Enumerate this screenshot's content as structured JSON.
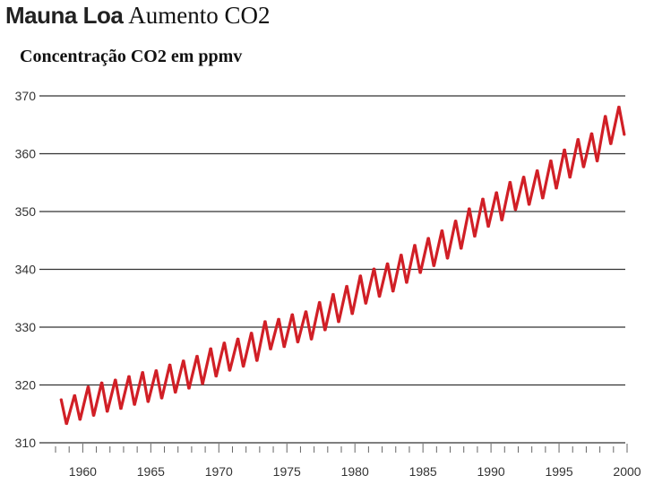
{
  "title": {
    "main": "Mauna Loa",
    "sub": "Aumento CO2"
  },
  "subtitle": "Concentração CO2 em ppmv",
  "colors": {
    "series": "#d11f26",
    "grid": "#333333"
  },
  "chart_data": {
    "type": "line",
    "title": "Mauna Loa Aumento CO2",
    "subtitle": "Concentração CO2 em ppmv",
    "xlabel": "",
    "ylabel": "",
    "xlim": [
      1958,
      2000
    ],
    "ylim": [
      310,
      373
    ],
    "grid": "horizontal",
    "yticks": [
      310,
      320,
      330,
      340,
      350,
      360,
      370
    ],
    "xticks": [
      1960,
      1965,
      1970,
      1975,
      1980,
      1985,
      1990,
      1995,
      2000
    ],
    "series": [
      {
        "peaks": [
          [
            1958.4,
            317.6
          ],
          [
            1959.4,
            318.3
          ],
          [
            1960.4,
            319.8
          ],
          [
            1961.4,
            320.5
          ],
          [
            1962.4,
            321.0
          ],
          [
            1963.4,
            321.6
          ],
          [
            1964.4,
            322.3
          ],
          [
            1965.4,
            322.6
          ],
          [
            1966.4,
            323.6
          ],
          [
            1967.4,
            324.3
          ],
          [
            1968.4,
            325.1
          ],
          [
            1969.4,
            326.4
          ],
          [
            1970.4,
            327.4
          ],
          [
            1971.4,
            328.1
          ],
          [
            1972.4,
            329.1
          ],
          [
            1973.4,
            331.1
          ],
          [
            1974.4,
            331.5
          ],
          [
            1975.4,
            332.3
          ],
          [
            1976.4,
            332.8
          ],
          [
            1977.4,
            334.4
          ],
          [
            1978.4,
            335.8
          ],
          [
            1979.4,
            337.2
          ],
          [
            1980.4,
            339.0
          ],
          [
            1981.4,
            340.2
          ],
          [
            1982.4,
            341.1
          ],
          [
            1983.4,
            342.6
          ],
          [
            1984.4,
            344.3
          ],
          [
            1985.4,
            345.5
          ],
          [
            1986.4,
            346.8
          ],
          [
            1987.4,
            348.5
          ],
          [
            1988.4,
            350.6
          ],
          [
            1989.4,
            352.3
          ],
          [
            1990.4,
            353.4
          ],
          [
            1991.4,
            355.2
          ],
          [
            1992.4,
            356.1
          ],
          [
            1993.4,
            357.2
          ],
          [
            1994.4,
            358.9
          ],
          [
            1995.4,
            360.8
          ],
          [
            1996.4,
            362.6
          ],
          [
            1997.4,
            363.6
          ],
          [
            1998.4,
            366.6
          ],
          [
            1999.4,
            368.2
          ]
        ],
        "troughs": [
          [
            1958.8,
            313.2
          ],
          [
            1959.8,
            313.9
          ],
          [
            1960.8,
            314.6
          ],
          [
            1961.8,
            315.3
          ],
          [
            1962.8,
            315.8
          ],
          [
            1963.8,
            316.5
          ],
          [
            1964.8,
            317.0
          ],
          [
            1965.8,
            317.6
          ],
          [
            1966.8,
            318.6
          ],
          [
            1967.8,
            319.3
          ],
          [
            1968.8,
            320.1
          ],
          [
            1969.8,
            321.4
          ],
          [
            1970.8,
            322.4
          ],
          [
            1971.8,
            323.1
          ],
          [
            1972.8,
            324.1
          ],
          [
            1973.8,
            326.1
          ],
          [
            1974.8,
            326.5
          ],
          [
            1975.8,
            327.3
          ],
          [
            1976.8,
            327.8
          ],
          [
            1977.8,
            329.4
          ],
          [
            1978.8,
            330.8
          ],
          [
            1979.8,
            332.2
          ],
          [
            1980.8,
            334.0
          ],
          [
            1981.8,
            335.2
          ],
          [
            1982.8,
            336.1
          ],
          [
            1983.8,
            337.6
          ],
          [
            1984.8,
            339.3
          ],
          [
            1985.8,
            340.5
          ],
          [
            1986.8,
            341.8
          ],
          [
            1987.8,
            343.5
          ],
          [
            1988.8,
            345.6
          ],
          [
            1989.8,
            347.3
          ],
          [
            1990.8,
            348.4
          ],
          [
            1991.8,
            350.2
          ],
          [
            1992.8,
            351.1
          ],
          [
            1993.8,
            352.2
          ],
          [
            1994.8,
            353.9
          ],
          [
            1995.8,
            355.8
          ],
          [
            1996.8,
            357.6
          ],
          [
            1997.8,
            358.6
          ],
          [
            1998.8,
            361.6
          ],
          [
            1999.8,
            363.2
          ]
        ]
      }
    ]
  }
}
